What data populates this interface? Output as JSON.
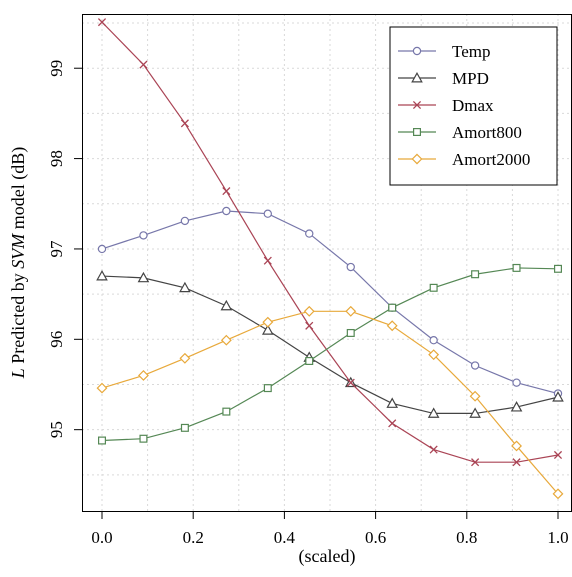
{
  "chart_data": {
    "type": "line",
    "title": "",
    "xlabel": "(scaled)",
    "ylabel_parts": [
      {
        "text": "L",
        "italic": true
      },
      {
        "text": " Predicted  by ",
        "italic": false
      },
      {
        "text": "SVM",
        "italic": true
      },
      {
        "text": " model (dB)",
        "italic": false
      }
    ],
    "x": [
      0.0,
      0.0909,
      0.1818,
      0.2727,
      0.3636,
      0.4545,
      0.5455,
      0.6364,
      0.7273,
      0.8182,
      0.9091,
      1.0
    ],
    "xlim": [
      0.0,
      1.0
    ],
    "ylim": [
      94.1,
      99.6
    ],
    "x_ticks": [
      0.0,
      0.2,
      0.4,
      0.6,
      0.8,
      1.0
    ],
    "x_tick_labels": [
      "0.0",
      "0.2",
      "0.4",
      "0.6",
      "0.8",
      "1.0"
    ],
    "y_ticks": [
      95,
      96,
      97,
      98,
      99
    ],
    "y_tick_labels": [
      "95",
      "96",
      "97",
      "98",
      "99"
    ],
    "grid": true,
    "legend_position": "top-right",
    "series": [
      {
        "name": "Temp",
        "color": "#7777aa",
        "marker": "circle",
        "values": [
          97.0,
          97.15,
          97.31,
          97.42,
          97.39,
          97.17,
          96.8,
          96.35,
          95.99,
          95.71,
          95.52,
          95.4
        ]
      },
      {
        "name": "MPD",
        "color": "#444444",
        "marker": "triangle",
        "values": [
          96.7,
          96.68,
          96.57,
          96.37,
          96.1,
          95.8,
          95.52,
          95.29,
          95.18,
          95.18,
          95.25,
          95.36
        ]
      },
      {
        "name": "Dmax",
        "color": "#aa4455",
        "marker": "x",
        "values": [
          99.51,
          99.04,
          98.39,
          97.64,
          96.87,
          96.15,
          95.52,
          95.07,
          94.78,
          94.64,
          94.64,
          94.72
        ]
      },
      {
        "name": "Amort800",
        "color": "#558855",
        "marker": "square",
        "values": [
          94.88,
          94.9,
          95.02,
          95.2,
          95.46,
          95.76,
          96.07,
          96.35,
          96.57,
          96.72,
          96.79,
          96.78
        ]
      },
      {
        "name": "Amort2000",
        "color": "#e8a93b",
        "marker": "diamond",
        "values": [
          95.46,
          95.6,
          95.79,
          95.99,
          96.19,
          96.31,
          96.31,
          96.15,
          95.83,
          95.37,
          94.82,
          94.29
        ]
      }
    ]
  }
}
